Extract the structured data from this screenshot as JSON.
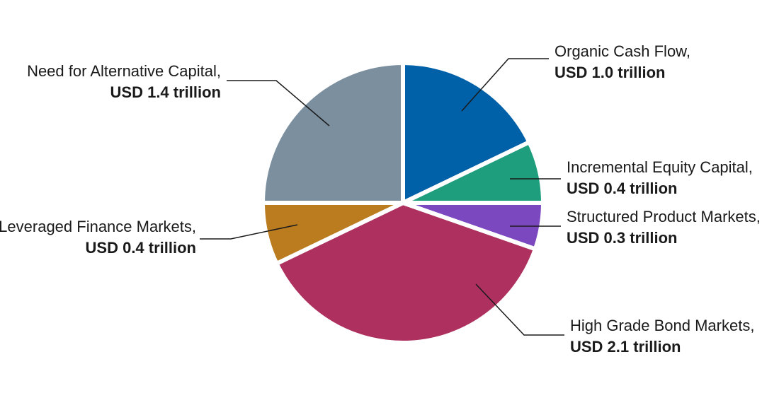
{
  "chart_data": {
    "type": "pie",
    "categories": [
      "Organic Cash Flow,",
      "Incremental Equity Capital,",
      "Structured Product Markets,",
      "High Grade Bond Markets,",
      "Leveraged Finance Markets,",
      "Need for Alternative Capital,"
    ],
    "values": [
      1.0,
      0.4,
      0.3,
      2.1,
      0.4,
      1.4
    ],
    "value_labels": [
      "USD 1.0 trillion",
      "USD 0.4 trillion",
      "USD 0.3 trillion",
      "USD 2.1 trillion",
      "USD 0.4 trillion",
      "USD 1.4 trillion"
    ],
    "colors": [
      "#0060a8",
      "#1f9e7e",
      "#7b48c0",
      "#ad305e",
      "#bb7b1f",
      "#7b8f9f"
    ]
  }
}
